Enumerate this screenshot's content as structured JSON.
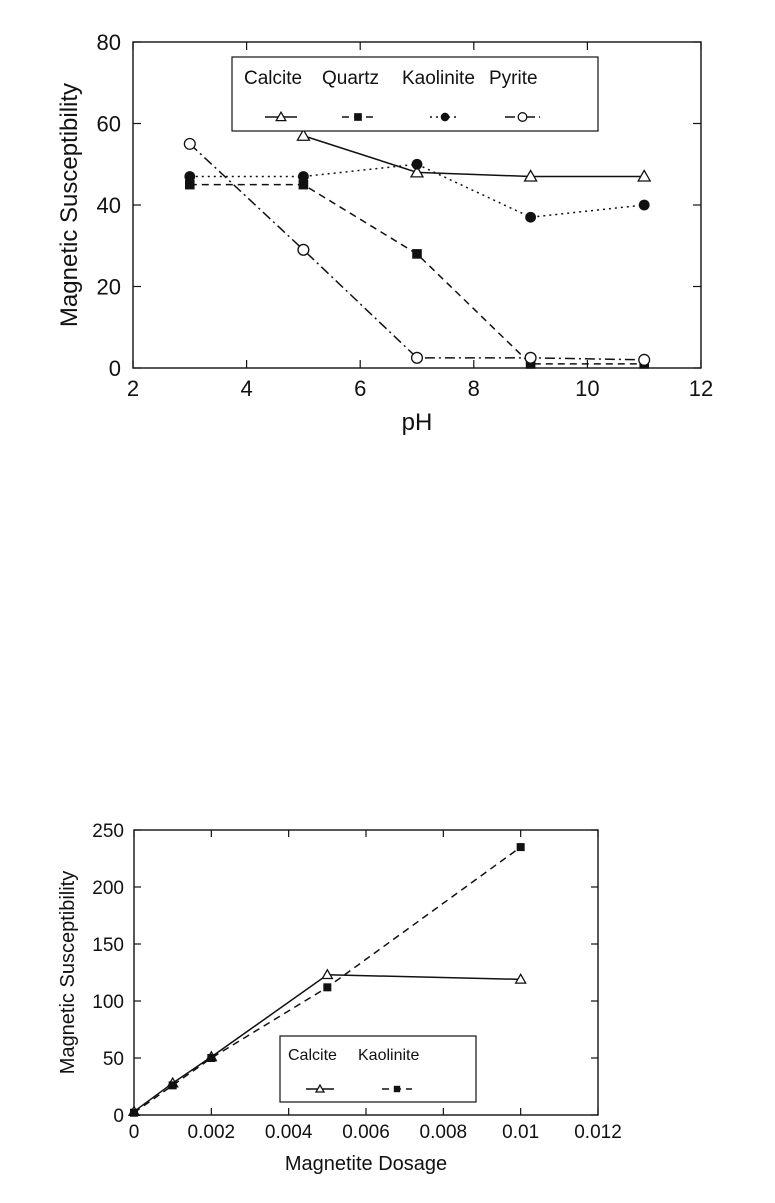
{
  "chart_data": [
    {
      "type": "line",
      "xlabel": "pH",
      "ylabel": "Magnetic Susceptibility",
      "xlim": [
        2,
        12
      ],
      "ylim": [
        0,
        80
      ],
      "xticks": [
        2,
        4,
        6,
        8,
        10,
        12
      ],
      "yticks": [
        0,
        20,
        40,
        60,
        80
      ],
      "grid": false,
      "legend": "top-center",
      "series": [
        {
          "name": "Calcite",
          "marker": "open-triangle",
          "line": "solid",
          "points": [
            [
              5,
              57
            ],
            [
              7,
              48
            ],
            [
              9,
              47
            ],
            [
              11,
              47
            ]
          ]
        },
        {
          "name": "Quartz",
          "marker": "filled-square",
          "line": "dashed",
          "points": [
            [
              3,
              45
            ],
            [
              5,
              45
            ],
            [
              7,
              28
            ],
            [
              9,
              1
            ],
            [
              11,
              1
            ]
          ]
        },
        {
          "name": "Kaolinite",
          "marker": "filled-circle",
          "line": "dotted",
          "points": [
            [
              3,
              47
            ],
            [
              5,
              47
            ],
            [
              7,
              50
            ],
            [
              9,
              37
            ],
            [
              11,
              40
            ]
          ]
        },
        {
          "name": "Pyrite",
          "marker": "open-circle",
          "line": "dash-dot",
          "points": [
            [
              3,
              55
            ],
            [
              5,
              29
            ],
            [
              7,
              2.5
            ],
            [
              9,
              2.5
            ],
            [
              11,
              2
            ]
          ]
        }
      ]
    },
    {
      "type": "line",
      "xlabel": "Magnetite Dosage",
      "ylabel": "Magnetic Susceptibility",
      "xlim": [
        0,
        0.012
      ],
      "ylim": [
        0,
        250
      ],
      "xticks": [
        "0",
        "0.002",
        "0.004",
        "0.006",
        "0.008",
        "0.01",
        "0.012"
      ],
      "yticks": [
        0,
        50,
        100,
        150,
        200,
        250
      ],
      "grid": false,
      "legend": "bottom-center",
      "series": [
        {
          "name": "Calcite",
          "marker": "open-triangle",
          "line": "solid",
          "points": [
            [
              0,
              3
            ],
            [
              0.001,
              28
            ],
            [
              0.002,
              51
            ],
            [
              0.005,
              123
            ],
            [
              0.01,
              119
            ]
          ]
        },
        {
          "name": "Kaolinite",
          "marker": "filled-square",
          "line": "dashed",
          "points": [
            [
              0,
              2
            ],
            [
              0.001,
              26
            ],
            [
              0.002,
              50
            ],
            [
              0.005,
              112
            ],
            [
              0.01,
              235
            ]
          ]
        }
      ]
    }
  ]
}
